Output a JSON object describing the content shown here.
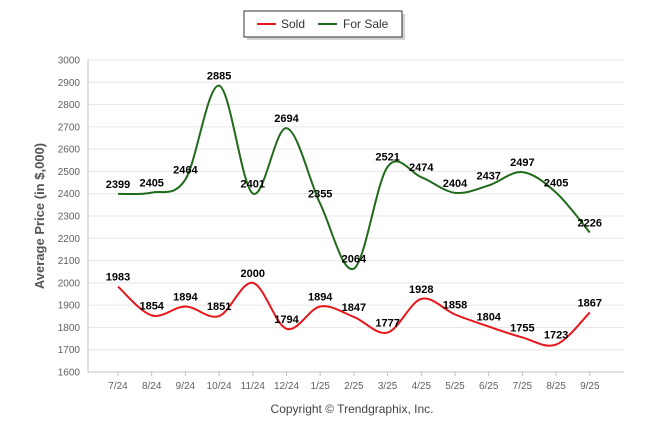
{
  "chart_data": {
    "type": "line",
    "title": "",
    "xlabel": "",
    "ylabel": "Average Price (in $,000)",
    "categories": [
      "7/24",
      "8/24",
      "9/24",
      "10/24",
      "11/24",
      "12/24",
      "1/25",
      "2/25",
      "3/25",
      "4/25",
      "5/25",
      "6/25",
      "7/25",
      "8/25",
      "9/25"
    ],
    "ylim": [
      1600,
      3000
    ],
    "yticks": [
      1600,
      1700,
      1800,
      1900,
      2000,
      2100,
      2200,
      2300,
      2400,
      2500,
      2600,
      2700,
      2800,
      2900,
      3000
    ],
    "grid": true,
    "legend_position": "top-center",
    "series": [
      {
        "name": "Sold",
        "color": "#e8161b",
        "values": [
          1983,
          1854,
          1894,
          1851,
          2000,
          1794,
          1894,
          1847,
          1777,
          1928,
          1858,
          1804,
          1755,
          1723,
          1867
        ]
      },
      {
        "name": "For Sale",
        "color": "#1f6b1a",
        "values": [
          2399,
          2405,
          2464,
          2885,
          2401,
          2694,
          2355,
          2064,
          2521,
          2474,
          2404,
          2437,
          2497,
          2405,
          2226
        ]
      }
    ],
    "credit": "Copyright © Trendgraphix, Inc."
  }
}
